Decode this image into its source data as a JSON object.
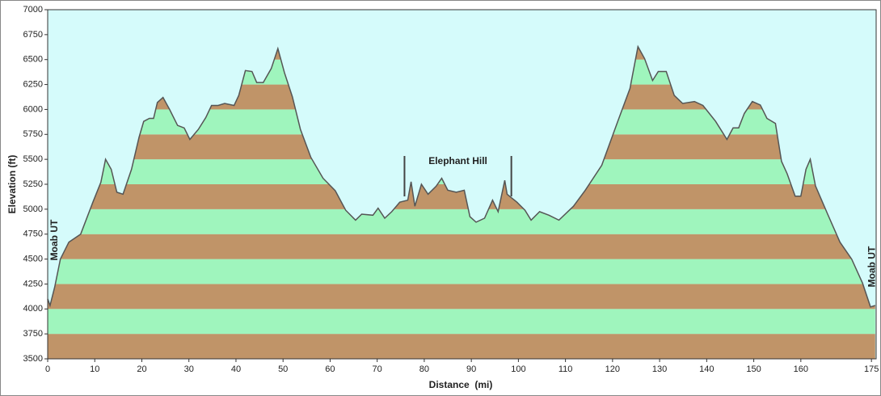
{
  "chart_data": {
    "type": "area",
    "xlabel": "Distance  (mi)",
    "ylabel": "Elevation (ft)",
    "x": [
      0,
      0.5,
      1.5,
      2.7,
      4.5,
      7,
      9.6,
      11.3,
      12.3,
      13.5,
      14.7,
      16,
      17.8,
      19.4,
      20.4,
      21.6,
      22.5,
      23.3,
      24.5,
      25.9,
      27.6,
      29,
      30.2,
      32,
      33.6,
      34.8,
      36.2,
      37.6,
      39.6,
      40.6,
      42,
      43.4,
      44.4,
      45.8,
      47.5,
      48.9,
      50.3,
      52,
      53.7,
      55.9,
      58.5,
      61.1,
      63.3,
      65.4,
      66.7,
      69.1,
      70.2,
      71.6,
      73.1,
      74.8,
      76.5,
      77.2,
      78,
      79.4,
      80.8,
      82.5,
      83.7,
      85,
      86.8,
      88.5,
      89.7,
      91,
      92.8,
      94.5,
      95.7,
      97.1,
      97.6,
      99.7,
      101.4,
      102.7,
      104.5,
      106.5,
      108.6,
      111.7,
      114.2,
      117.7,
      121.1,
      123.7,
      125.4,
      126.8,
      128.5,
      129.7,
      131.4,
      133.1,
      134.9,
      137.4,
      139.2,
      141.9,
      144.3,
      145.6,
      146.8,
      148,
      149.7,
      151.4,
      152.8,
      154.6,
      155.9,
      157.1,
      158.8,
      160,
      161.1,
      162,
      163.1,
      165.7,
      168.3,
      170.8,
      173.1,
      174.8,
      175.8
    ],
    "values": [
      4100,
      4035,
      4220,
      4500,
      4670,
      4750,
      5070,
      5270,
      5500,
      5400,
      5170,
      5150,
      5400,
      5720,
      5880,
      5910,
      5910,
      6070,
      6120,
      6000,
      5840,
      5815,
      5700,
      5800,
      5920,
      6040,
      6040,
      6060,
      6040,
      6140,
      6390,
      6380,
      6270,
      6270,
      6410,
      6610,
      6370,
      6125,
      5800,
      5520,
      5310,
      5185,
      4990,
      4890,
      4950,
      4940,
      5010,
      4910,
      4975,
      5070,
      5090,
      5275,
      5030,
      5250,
      5150,
      5230,
      5310,
      5190,
      5170,
      5190,
      4925,
      4870,
      4910,
      5090,
      4975,
      5290,
      5150,
      5070,
      4990,
      4890,
      4975,
      4940,
      4890,
      5030,
      5190,
      5440,
      5880,
      6210,
      6630,
      6510,
      6290,
      6380,
      6380,
      6140,
      6060,
      6080,
      6040,
      5880,
      5700,
      5815,
      5815,
      5960,
      6080,
      6045,
      5910,
      5860,
      5480,
      5355,
      5130,
      5130,
      5400,
      5500,
      5235,
      4950,
      4670,
      4500,
      4260,
      4020,
      4035
    ],
    "line_color": "#555555",
    "band_colors": [
      "#c09468",
      "#9ff5bd"
    ],
    "background": "#d5fbfb",
    "xlim": [
      0,
      176
    ],
    "ylim": [
      3500,
      7000
    ],
    "xticks": [
      0,
      10,
      20,
      30,
      40,
      50,
      60,
      70,
      80,
      90,
      100,
      110,
      120,
      130,
      140,
      150,
      160,
      175
    ],
    "yticks": [
      3500,
      3750,
      4000,
      4250,
      4500,
      4750,
      5000,
      5250,
      5500,
      5750,
      6000,
      6250,
      6500,
      6750,
      7000
    ],
    "annotations": [
      {
        "text": "Moab UT",
        "x": 0
      },
      {
        "text": "Elephant Hill",
        "x": [
          75.8,
          98.5
        ]
      },
      {
        "text": "Moab UT",
        "x": 175
      }
    ]
  }
}
